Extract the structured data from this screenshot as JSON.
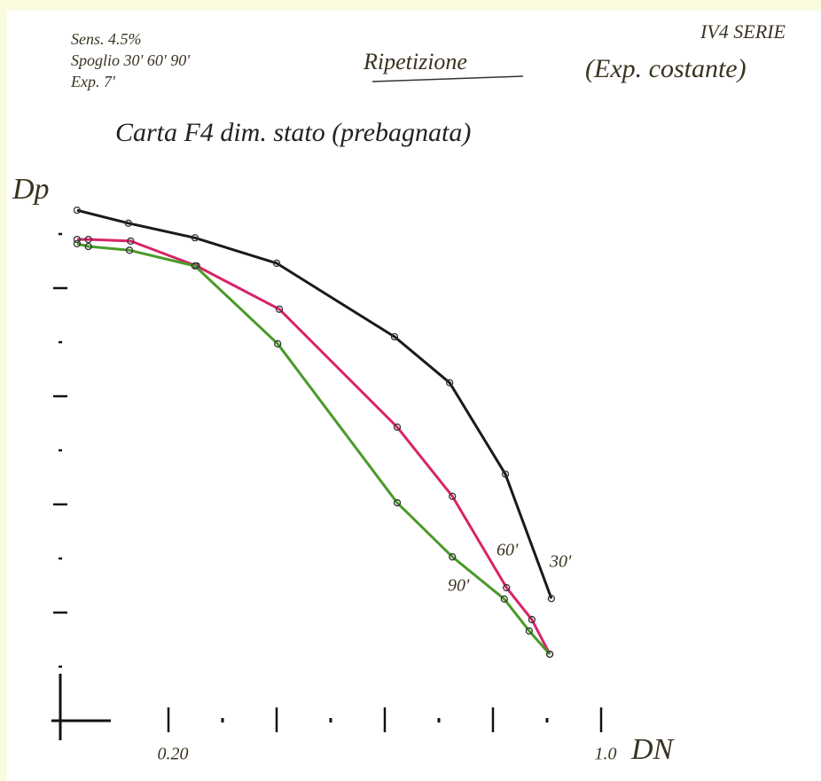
{
  "chart_data": {
    "type": "line",
    "title": "Carta F4 dim. stato (prebagnata)",
    "annotations": [
      "Sens. 4.5%",
      "Spoglio 30' 60' 90'",
      "Exp. 7'",
      "Ripetizione",
      "IV4 SERIE",
      "(Exp. costante)"
    ],
    "x_label": "DN",
    "y_label": "Dp",
    "xlim": [
      0,
      1.2
    ],
    "ylim": [
      0,
      1.0
    ],
    "xticks": [
      {
        "value": 0.2,
        "label": "0.20"
      },
      0.3,
      0.4,
      0.5,
      0.6,
      0.7,
      0.8,
      0.9,
      {
        "value": 1,
        "label": "1.0"
      }
    ],
    "yticks": [
      0.1,
      0.2,
      0.3,
      0.4,
      0.5,
      0.6,
      0.7,
      0.8,
      0.9
    ],
    "grid": false,
    "series": [
      {
        "name": "30'",
        "color": "#1a1a1a",
        "x": [
          0.031,
          0.126,
          0.249,
          0.4,
          0.618,
          0.72,
          0.823,
          0.908
        ],
        "values": [
          0.944,
          0.92,
          0.893,
          0.846,
          0.71,
          0.625,
          0.456,
          0.226
        ]
      },
      {
        "name": "60'",
        "color": "#d6246a",
        "x": [
          0.031,
          0.052,
          0.13,
          0.252,
          0.405,
          0.623,
          0.725,
          0.825,
          0.872,
          0.905
        ],
        "values": [
          0.89,
          0.89,
          0.887,
          0.841,
          0.761,
          0.543,
          0.415,
          0.246,
          0.187,
          0.123
        ]
      },
      {
        "name": "90'",
        "color": "#4a9a2a",
        "x": [
          0.031,
          0.052,
          0.128,
          0.249,
          0.402,
          0.623,
          0.725,
          0.821,
          0.867,
          0.905
        ],
        "values": [
          0.882,
          0.877,
          0.87,
          0.841,
          0.697,
          0.403,
          0.303,
          0.225,
          0.166,
          0.123
        ]
      }
    ]
  }
}
